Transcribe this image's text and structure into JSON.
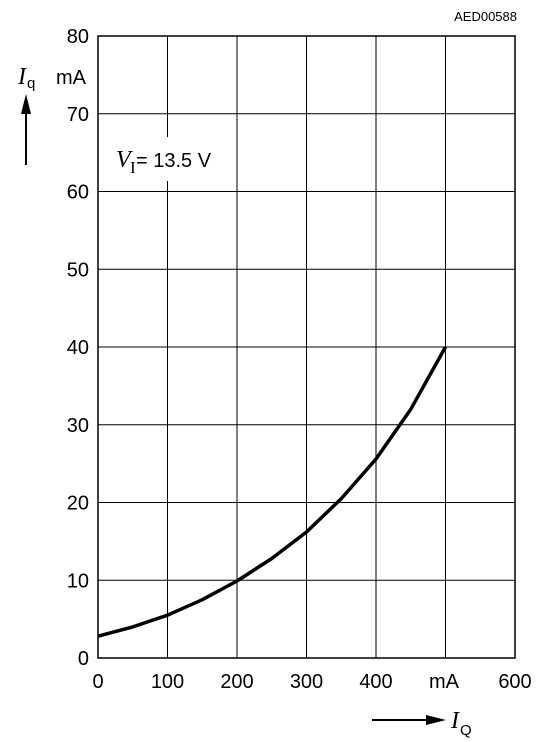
{
  "chart_data": {
    "type": "line",
    "figure_code": "AED00588",
    "x_symbol": "I",
    "x_subscript": "Q",
    "y_symbol": "I",
    "y_subscript": "q",
    "x_unit": "mA",
    "y_unit": "mA",
    "xlim": [
      0,
      600
    ],
    "ylim": [
      0,
      80
    ],
    "grid": true,
    "x_ticks": [
      "0",
      "100",
      "200",
      "300",
      "400",
      "",
      "600"
    ],
    "y_ticks": [
      "0",
      "10",
      "20",
      "30",
      "40",
      "50",
      "60",
      "70",
      "80"
    ],
    "annotation": {
      "symbol": "V",
      "subscript": "I",
      "text": " = 13.5 V"
    },
    "series": [
      {
        "color": "#000000",
        "x": [
          0,
          50,
          100,
          150,
          200,
          250,
          300,
          350,
          400,
          450,
          500
        ],
        "y": [
          2.8,
          4.0,
          5.5,
          7.5,
          9.9,
          12.8,
          16.2,
          20.5,
          25.6,
          32.0,
          40.0
        ]
      }
    ]
  }
}
